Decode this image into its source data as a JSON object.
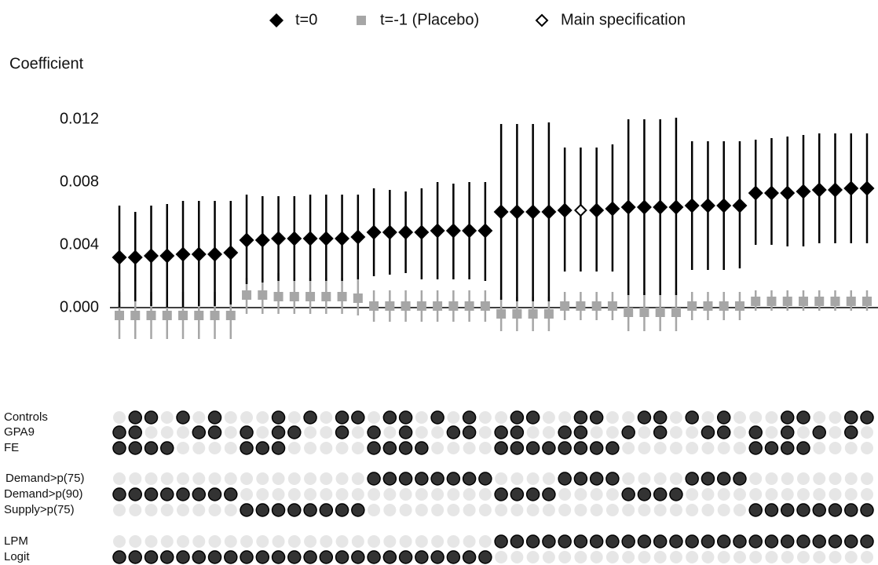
{
  "chart_data": {
    "type": "spec-curve",
    "y_label": "Coefficient",
    "ylim": [
      -0.0025,
      0.0145
    ],
    "yticks": [
      {
        "value": 0,
        "label": "0.000"
      },
      {
        "value": 0.004,
        "label": "0.004"
      },
      {
        "value": 0.008,
        "label": "0.008"
      },
      {
        "value": 0.012,
        "label": "0.012"
      }
    ],
    "highlight": {
      "name": "Main specification",
      "index": 29
    },
    "series": [
      {
        "name": "t=0",
        "color": "#000000",
        "values": [
          0.0032,
          0.0032,
          0.0033,
          0.0033,
          0.0034,
          0.0034,
          0.0034,
          0.0035,
          0.0043,
          0.0043,
          0.0044,
          0.0044,
          0.0044,
          0.0044,
          0.0044,
          0.0045,
          0.0048,
          0.0048,
          0.0048,
          0.0048,
          0.0049,
          0.0049,
          0.0049,
          0.0049,
          0.0061,
          0.0061,
          0.0061,
          0.0061,
          0.0062,
          0.0062,
          0.0062,
          0.0063,
          0.0064,
          0.0064,
          0.0064,
          0.0064,
          0.0065,
          0.0065,
          0.0065,
          0.0065,
          0.0073,
          0.0073,
          0.0073,
          0.0074,
          0.0075,
          0.0075,
          0.0076,
          0.0076
        ],
        "lower": [
          0.0,
          0.0004,
          0.0001,
          0.0,
          0.0,
          0.0001,
          0.0001,
          0.0002,
          0.0015,
          0.0016,
          0.0017,
          0.0017,
          0.0017,
          0.0017,
          0.0017,
          0.0018,
          0.002,
          0.0021,
          0.0022,
          0.0018,
          0.0018,
          0.0018,
          0.0018,
          0.0017,
          0.0005,
          0.0004,
          0.0004,
          0.0004,
          0.0023,
          0.0023,
          0.0023,
          0.0023,
          0.0008,
          0.0008,
          0.0008,
          0.0008,
          0.0024,
          0.0024,
          0.0024,
          0.0025,
          0.004,
          0.004,
          0.0039,
          0.0039,
          0.0041,
          0.0041,
          0.0041,
          0.0041
        ],
        "upper": [
          0.0065,
          0.0061,
          0.0065,
          0.0066,
          0.0068,
          0.0068,
          0.0068,
          0.0068,
          0.0072,
          0.0071,
          0.0071,
          0.0071,
          0.0072,
          0.0072,
          0.0072,
          0.0072,
          0.0076,
          0.0075,
          0.0074,
          0.0076,
          0.008,
          0.0079,
          0.008,
          0.008,
          0.0117,
          0.0117,
          0.0117,
          0.0118,
          0.0102,
          0.0102,
          0.0102,
          0.0104,
          0.012,
          0.012,
          0.012,
          0.0121,
          0.0106,
          0.0106,
          0.0106,
          0.0106,
          0.0107,
          0.0108,
          0.0109,
          0.011,
          0.0111,
          0.0111,
          0.0111,
          0.0111
        ]
      },
      {
        "name": "t=-1 (Placebo)",
        "color": "#a6a6a6",
        "values": [
          -0.0005,
          -0.0005,
          -0.0005,
          -0.0005,
          -0.0005,
          -0.0005,
          -0.0005,
          -0.0005,
          0.0008,
          0.0008,
          0.0007,
          0.0007,
          0.0007,
          0.0007,
          0.0007,
          0.0006,
          0.0001,
          0.0001,
          0.0001,
          0.0001,
          0.0001,
          0.0001,
          0.0001,
          0.0001,
          -0.0004,
          -0.0004,
          -0.0004,
          -0.0004,
          0.0001,
          0.0001,
          0.0001,
          0.0001,
          -0.0003,
          -0.0003,
          -0.0003,
          -0.0003,
          0.0001,
          0.0001,
          0.0001,
          0.0001,
          0.0004,
          0.0004,
          0.0004,
          0.0004,
          0.0004,
          0.0004,
          0.0004,
          0.0004
        ],
        "lower": [
          -0.002,
          -0.002,
          -0.002,
          -0.002,
          -0.002,
          -0.002,
          -0.002,
          -0.002,
          -0.0004,
          -0.0004,
          -0.0004,
          -0.0004,
          -0.0004,
          -0.0004,
          -0.0004,
          -0.0005,
          -0.0009,
          -0.0009,
          -0.0009,
          -0.0009,
          -0.0009,
          -0.0009,
          -0.0009,
          -0.0009,
          -0.0015,
          -0.0015,
          -0.0015,
          -0.0015,
          -0.0008,
          -0.0008,
          -0.0008,
          -0.0008,
          -0.0015,
          -0.0015,
          -0.0015,
          -0.0015,
          -0.0008,
          -0.0008,
          -0.0008,
          -0.0008,
          -0.0002,
          -0.0002,
          -0.0002,
          -0.0002,
          -0.0002,
          -0.0002,
          -0.0002,
          -0.0002
        ],
        "upper": [
          0.001,
          0.001,
          0.001,
          0.001,
          0.001,
          0.001,
          0.001,
          0.001,
          0.0019,
          0.0019,
          0.0022,
          0.0019,
          0.0019,
          0.0019,
          0.0019,
          0.0018,
          0.0011,
          0.0011,
          0.0011,
          0.0011,
          0.0011,
          0.0011,
          0.0011,
          0.0011,
          0.0007,
          0.0007,
          0.0007,
          0.0007,
          0.001,
          0.001,
          0.001,
          0.001,
          0.001,
          0.001,
          0.001,
          0.001,
          0.001,
          0.001,
          0.001,
          0.001,
          0.0011,
          0.0011,
          0.0011,
          0.0011,
          0.0011,
          0.0011,
          0.0011,
          0.0011
        ]
      }
    ],
    "indicators": [
      {
        "label": "Controls",
        "values": [
          0,
          1,
          1,
          0,
          1,
          0,
          1,
          0,
          0,
          0,
          1,
          0,
          1,
          0,
          1,
          1,
          0,
          1,
          1,
          0,
          1,
          0,
          1,
          0,
          0,
          1,
          1,
          0,
          0,
          1,
          1,
          0,
          0,
          1,
          1,
          0,
          1,
          0,
          1,
          0,
          0,
          0,
          1,
          1,
          0,
          0,
          1,
          1
        ]
      },
      {
        "label": "GPA9",
        "values": [
          1,
          1,
          0,
          0,
          0,
          1,
          1,
          0,
          1,
          0,
          1,
          1,
          0,
          0,
          1,
          0,
          1,
          0,
          1,
          0,
          0,
          1,
          1,
          0,
          1,
          1,
          0,
          0,
          1,
          1,
          0,
          0,
          1,
          0,
          1,
          0,
          0,
          1,
          1,
          0,
          1,
          0,
          1,
          0,
          1,
          0,
          1,
          0
        ]
      },
      {
        "label": "FE",
        "values": [
          1,
          1,
          1,
          1,
          0,
          0,
          0,
          0,
          1,
          1,
          1,
          0,
          0,
          0,
          0,
          0,
          1,
          1,
          1,
          1,
          0,
          0,
          0,
          0,
          1,
          1,
          1,
          1,
          1,
          1,
          1,
          1,
          0,
          0,
          0,
          0,
          0,
          0,
          0,
          0,
          1,
          1,
          1,
          1,
          0,
          0,
          0,
          0
        ]
      },
      {
        "label": "Demand>p(75)",
        "values": [
          0,
          0,
          0,
          0,
          0,
          0,
          0,
          0,
          0,
          0,
          0,
          0,
          0,
          0,
          0,
          0,
          1,
          1,
          1,
          1,
          1,
          1,
          1,
          1,
          0,
          0,
          0,
          0,
          1,
          1,
          1,
          1,
          0,
          0,
          0,
          0,
          1,
          1,
          1,
          1,
          0,
          0,
          0,
          0,
          0,
          0,
          0,
          0
        ]
      },
      {
        "label": "Demand>p(90)",
        "values": [
          1,
          1,
          1,
          1,
          1,
          1,
          1,
          1,
          0,
          0,
          0,
          0,
          0,
          0,
          0,
          0,
          0,
          0,
          0,
          0,
          0,
          0,
          0,
          0,
          1,
          1,
          1,
          1,
          0,
          0,
          0,
          0,
          1,
          1,
          1,
          1,
          0,
          0,
          0,
          0,
          0,
          0,
          0,
          0,
          0,
          0,
          0,
          0
        ]
      },
      {
        "label": "Supply>p(75)",
        "values": [
          0,
          0,
          0,
          0,
          0,
          0,
          0,
          0,
          1,
          1,
          1,
          1,
          1,
          1,
          1,
          1,
          0,
          0,
          0,
          0,
          0,
          0,
          0,
          0,
          0,
          0,
          0,
          0,
          0,
          0,
          0,
          0,
          0,
          0,
          0,
          0,
          0,
          0,
          0,
          0,
          1,
          1,
          1,
          1,
          1,
          1,
          1,
          1
        ]
      },
      {
        "label": "LPM",
        "values": [
          0,
          0,
          0,
          0,
          0,
          0,
          0,
          0,
          0,
          0,
          0,
          0,
          0,
          0,
          0,
          0,
          0,
          0,
          0,
          0,
          0,
          0,
          0,
          0,
          1,
          1,
          1,
          1,
          1,
          1,
          1,
          1,
          1,
          1,
          1,
          1,
          1,
          1,
          1,
          1,
          1,
          1,
          1,
          1,
          1,
          1,
          1,
          1
        ]
      },
      {
        "label": "Logit",
        "values": [
          1,
          1,
          1,
          1,
          1,
          1,
          1,
          1,
          1,
          1,
          1,
          1,
          1,
          1,
          1,
          1,
          1,
          1,
          1,
          1,
          1,
          1,
          1,
          1,
          0,
          0,
          0,
          0,
          0,
          0,
          0,
          0,
          0,
          0,
          0,
          0,
          0,
          0,
          0,
          0,
          0,
          0,
          0,
          0,
          0,
          0,
          0,
          0
        ]
      }
    ]
  }
}
